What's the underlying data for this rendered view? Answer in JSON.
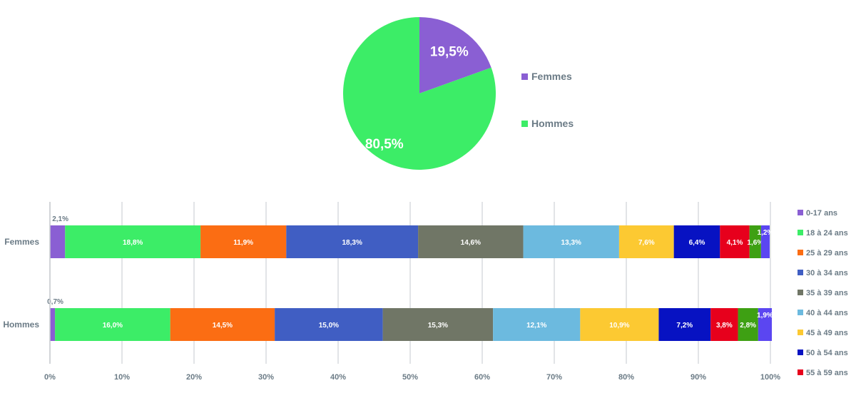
{
  "chart_data": [
    {
      "type": "pie",
      "slices": [
        {
          "label": "Femmes",
          "value": 19.5,
          "display": "19,5%",
          "color": "#8a5fd3"
        },
        {
          "label": "Hommes",
          "value": 80.5,
          "display": "80,5%",
          "color": "#3ced67"
        }
      ],
      "legend": [
        "Femmes",
        "Hommes"
      ],
      "legend_position": "right"
    },
    {
      "type": "bar",
      "orientation": "horizontal",
      "stacked": true,
      "percent": true,
      "categories": [
        "Femmes",
        "Hommes"
      ],
      "series": [
        {
          "name": "0-17 ans",
          "color": "#8a5fd3",
          "values": [
            2.1,
            0.7
          ],
          "labels": [
            "2,1%",
            "0,7%"
          ]
        },
        {
          "name": "18 à 24 ans",
          "color": "#3ced67",
          "values": [
            18.8,
            16.0
          ],
          "labels": [
            "18,8%",
            "16,0%"
          ]
        },
        {
          "name": "25 à 29 ans",
          "color": "#fb6d13",
          "values": [
            11.9,
            14.5
          ],
          "labels": [
            "11,9%",
            "14,5%"
          ]
        },
        {
          "name": "30 à 34 ans",
          "color": "#405ec3",
          "values": [
            18.3,
            15.0
          ],
          "labels": [
            "18,3%",
            "15,0%"
          ]
        },
        {
          "name": "35 à 39 ans",
          "color": "#707666",
          "values": [
            14.6,
            15.3
          ],
          "labels": [
            "14,6%",
            "15,3%"
          ]
        },
        {
          "name": "40 à 44 ans",
          "color": "#6cbadf",
          "values": [
            13.3,
            12.1
          ],
          "labels": [
            "13,3%",
            "12,1%"
          ]
        },
        {
          "name": "45 à 49 ans",
          "color": "#fcc932",
          "values": [
            7.6,
            10.9
          ],
          "labels": [
            "7,6%",
            "10,9%"
          ]
        },
        {
          "name": "50 à 54 ans",
          "color": "#0712c2",
          "values": [
            6.4,
            7.2
          ],
          "labels": [
            "6,4%",
            "7,2%"
          ]
        },
        {
          "name": "55 à 59 ans",
          "color": "#e7001c",
          "values": [
            4.1,
            3.8
          ],
          "labels": [
            "4,1%",
            "3,8%"
          ]
        },
        {
          "name": "",
          "color": "#3ea013",
          "values": [
            1.6,
            2.8
          ],
          "labels": [
            "1,6%",
            "2,8%"
          ]
        },
        {
          "name": "",
          "color": "#5b46f1",
          "values": [
            1.2,
            1.9
          ],
          "labels": [
            "1,2%",
            "1,9%"
          ]
        }
      ],
      "xlim": [
        0,
        100
      ],
      "xticks": [
        "0%",
        "10%",
        "20%",
        "30%",
        "40%",
        "50%",
        "60%",
        "70%",
        "80%",
        "90%",
        "100%"
      ],
      "grid": true,
      "legend_position": "right"
    }
  ]
}
